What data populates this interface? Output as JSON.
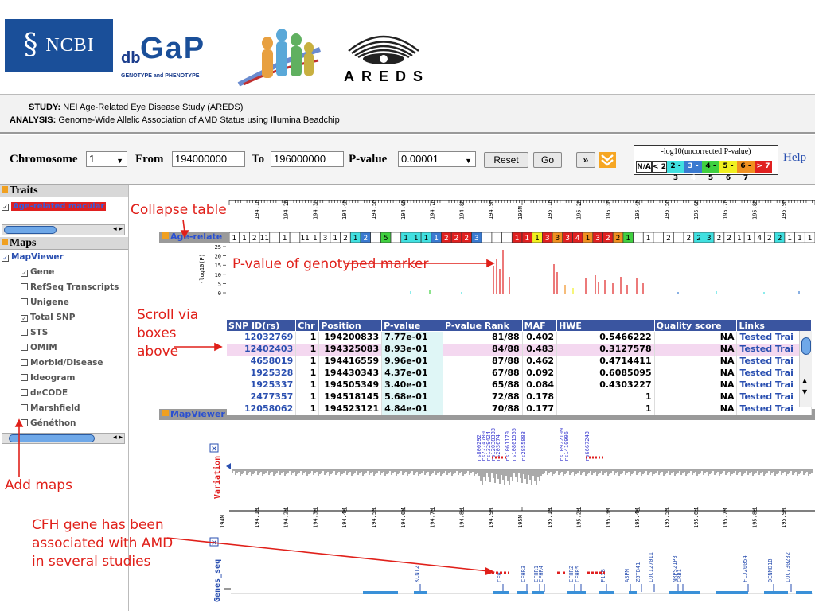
{
  "header": {
    "ncbi_symbol": "§",
    "ncbi_text": "NCBI",
    "dbgap_db": "db",
    "dbgap_gap": "GaP",
    "dbgap_sub": "GENOTYPE and PHENOTYPE",
    "areds": "AREDS"
  },
  "study": {
    "study_label": "STUDY:",
    "study_value": "NEI Age-Related Eye Disease Study (AREDS)",
    "analysis_label": "ANALYSIS:",
    "analysis_value": "Genome-Wide Allelic Association of AMD Status using Illumina Beadchip"
  },
  "controls": {
    "chromosome_label": "Chromosome",
    "chromosome_value": "1",
    "from_label": "From",
    "from_value": "194000000",
    "to_label": "To",
    "to_value": "196000000",
    "pvalue_label": "P-value",
    "pvalue_value": "0.00001",
    "reset": "Reset",
    "go": "Go",
    "next_icon": "»",
    "collapse_icon": "≫",
    "help": "Help"
  },
  "legend": {
    "title": "-log10(uncorrected P-value)",
    "bins": [
      {
        "label": "N/A",
        "color": "#ffffff"
      },
      {
        "label": "< 2",
        "color": "#ffffff"
      },
      {
        "label": "2 - 3",
        "color": "#40e0e0"
      },
      {
        "label": "3 - 4",
        "color": "#3a7ad0"
      },
      {
        "label": "4 - 5",
        "color": "#40d040"
      },
      {
        "label": "5 - 6",
        "color": "#f0f020"
      },
      {
        "label": "6 - 7",
        "color": "#f09020"
      },
      {
        "label": "> 7",
        "color": "#e02020"
      }
    ]
  },
  "left": {
    "traits_title": "Traits",
    "trait_item": "Age-related macular",
    "maps_title": "Maps",
    "mapviewer_label": "MapViewer",
    "map_items": [
      {
        "label": "Gene",
        "checked": true
      },
      {
        "label": "RefSeq Transcripts",
        "checked": false
      },
      {
        "label": "Unigene",
        "checked": false
      },
      {
        "label": "Total SNP",
        "checked": true
      },
      {
        "label": "STS",
        "checked": false
      },
      {
        "label": "OMIM",
        "checked": false
      },
      {
        "label": "Morbid/Disease",
        "checked": false
      },
      {
        "label": "Ideogram",
        "checked": false
      },
      {
        "label": "deCODE",
        "checked": false
      },
      {
        "label": "Marshfield",
        "checked": false
      },
      {
        "label": "Généthon",
        "checked": false
      }
    ]
  },
  "main": {
    "age_section": "Age-relate",
    "mapviewer_section": "MapViewer",
    "ruler_ticks": [
      "194.1M",
      "194.2M",
      "194.3M",
      "194.4M",
      "194.5M",
      "194.6M",
      "194.7M",
      "194.8M",
      "194.9M",
      "195M",
      "195.1M",
      "195.2M",
      "195.3M",
      "195.4M",
      "195.5M",
      "195.6M",
      "195.7M",
      "195.8M",
      "195.9M"
    ],
    "count_boxes": [
      {
        "t": "1",
        "c": "#fff"
      },
      {
        "t": "1",
        "c": "#fff"
      },
      {
        "t": "2",
        "c": "#fff"
      },
      {
        "t": "11",
        "c": "#fff"
      },
      {
        "t": "",
        "c": "#fff"
      },
      {
        "t": "1",
        "c": "#fff"
      },
      {
        "t": "",
        "c": "#fff"
      },
      {
        "t": "11",
        "c": "#fff"
      },
      {
        "t": "1",
        "c": "#fff"
      },
      {
        "t": "3",
        "c": "#fff"
      },
      {
        "t": "1",
        "c": "#fff"
      },
      {
        "t": "2",
        "c": "#fff"
      },
      {
        "t": "1",
        "c": "#40e0e0"
      },
      {
        "t": "2",
        "c": "#3a7ad0"
      },
      {
        "t": "",
        "c": "#fff"
      },
      {
        "t": "5",
        "c": "#40d040"
      },
      {
        "t": "",
        "c": "#fff"
      },
      {
        "t": "1",
        "c": "#40e0e0"
      },
      {
        "t": "1",
        "c": "#40e0e0"
      },
      {
        "t": "1",
        "c": "#40e0e0"
      },
      {
        "t": "1",
        "c": "#3a7ad0"
      },
      {
        "t": "2",
        "c": "#e02020"
      },
      {
        "t": "2",
        "c": "#e02020"
      },
      {
        "t": "2",
        "c": "#e02020"
      },
      {
        "t": "3",
        "c": "#3a7ad0"
      },
      {
        "t": "",
        "c": "#fff"
      },
      {
        "t": "",
        "c": "#fff"
      },
      {
        "t": "",
        "c": "#fff"
      },
      {
        "t": "1",
        "c": "#e02020"
      },
      {
        "t": "1",
        "c": "#e02020"
      },
      {
        "t": "1",
        "c": "#f0f020"
      },
      {
        "t": "3",
        "c": "#e02020"
      },
      {
        "t": "3",
        "c": "#f09020"
      },
      {
        "t": "3",
        "c": "#e02020"
      },
      {
        "t": "4",
        "c": "#e02020"
      },
      {
        "t": "1",
        "c": "#f09020"
      },
      {
        "t": "3",
        "c": "#e02020"
      },
      {
        "t": "2",
        "c": "#e02020"
      },
      {
        "t": "2",
        "c": "#f09020"
      },
      {
        "t": "1",
        "c": "#40d040"
      },
      {
        "t": "",
        "c": "#fff"
      },
      {
        "t": "1",
        "c": "#fff"
      },
      {
        "t": "",
        "c": "#fff"
      },
      {
        "t": "2",
        "c": "#fff"
      },
      {
        "t": "",
        "c": "#fff"
      },
      {
        "t": "2",
        "c": "#fff"
      },
      {
        "t": "2",
        "c": "#40e0e0"
      },
      {
        "t": "3",
        "c": "#40e0e0"
      },
      {
        "t": "2",
        "c": "#fff"
      },
      {
        "t": "2",
        "c": "#fff"
      },
      {
        "t": "1",
        "c": "#fff"
      },
      {
        "t": "1",
        "c": "#fff"
      },
      {
        "t": "4",
        "c": "#fff"
      },
      {
        "t": "2",
        "c": "#fff"
      },
      {
        "t": "2",
        "c": "#40e0e0"
      },
      {
        "t": "1",
        "c": "#fff"
      },
      {
        "t": "1",
        "c": "#fff"
      },
      {
        "t": "1",
        "c": "#fff"
      }
    ],
    "yaxis_label": "-log10(P)",
    "yaxis_ticks": [
      "25",
      "20",
      "15",
      "10",
      "5",
      "0"
    ],
    "variation_label": "Variation",
    "genes_label": "Genes_seq",
    "snp_labels": [
      "rs800292",
      "rs2274700",
      "rs1329424",
      "rs12038333",
      "rs203674",
      "rs1061170",
      "rs10801555",
      "rs2855883",
      "rs10922109",
      "rs1410996",
      "rs6667243"
    ],
    "gene_labels": [
      "KCNT2",
      "CFH",
      "CFHR3",
      "CFHR1",
      "CFHR4",
      "CFHR2",
      "CFHR5",
      "F13B",
      "ASPM",
      "ZBTB41",
      "LOC127011",
      "NRPS21P3",
      "CRB1",
      "FLJ20054",
      "DENND1B",
      "LOC730232"
    ]
  },
  "table": {
    "headers": [
      "SNP ID(rs)",
      "Chr",
      "Position",
      "P-value",
      "P-value Rank",
      "MAF",
      "HWE",
      "Quality score",
      "Links"
    ],
    "rows": [
      [
        "12032769",
        "1",
        "194200833",
        "7.77e-01",
        "81/88",
        "0.402",
        "0.5466222",
        "NA",
        "Tested Trai"
      ],
      [
        "12402403",
        "1",
        "194325083",
        "8.93e-01",
        "84/88",
        "0.483",
        "0.3127578",
        "NA",
        "Tested Trai"
      ],
      [
        "4658019",
        "1",
        "194416559",
        "9.96e-01",
        "87/88",
        "0.462",
        "0.4714411",
        "NA",
        "Tested Trai"
      ],
      [
        "1925328",
        "1",
        "194430343",
        "4.37e-01",
        "67/88",
        "0.092",
        "0.6085095",
        "NA",
        "Tested Trai"
      ],
      [
        "1925337",
        "1",
        "194505349",
        "3.40e-01",
        "65/88",
        "0.084",
        "0.4303227",
        "NA",
        "Tested Trai"
      ],
      [
        "2477357",
        "1",
        "194518145",
        "5.68e-01",
        "72/88",
        "0.178",
        "1",
        "NA",
        "Tested Trai"
      ],
      [
        "12058062",
        "1",
        "194523121",
        "4.84e-01",
        "70/88",
        "0.177",
        "1",
        "NA",
        "Tested Trai"
      ]
    ]
  },
  "annotations": {
    "collapse_table": "Collapse table",
    "pvalue_genotyped": "P-value of genotyped marker",
    "scroll_via": "Scroll via",
    "boxes": "boxes",
    "above": "above",
    "add_maps": "Add maps",
    "cfh_1": "CFH gene has been",
    "cfh_2": "associated with AMD",
    "cfh_3": "in several studies"
  },
  "colors": {
    "ncbi_blue": "#1a4f99",
    "annotation_red": "#e0201a",
    "table_header": "#3a55a0",
    "link_blue": "#2a4fb0",
    "panel_orange": "#f0a020"
  }
}
